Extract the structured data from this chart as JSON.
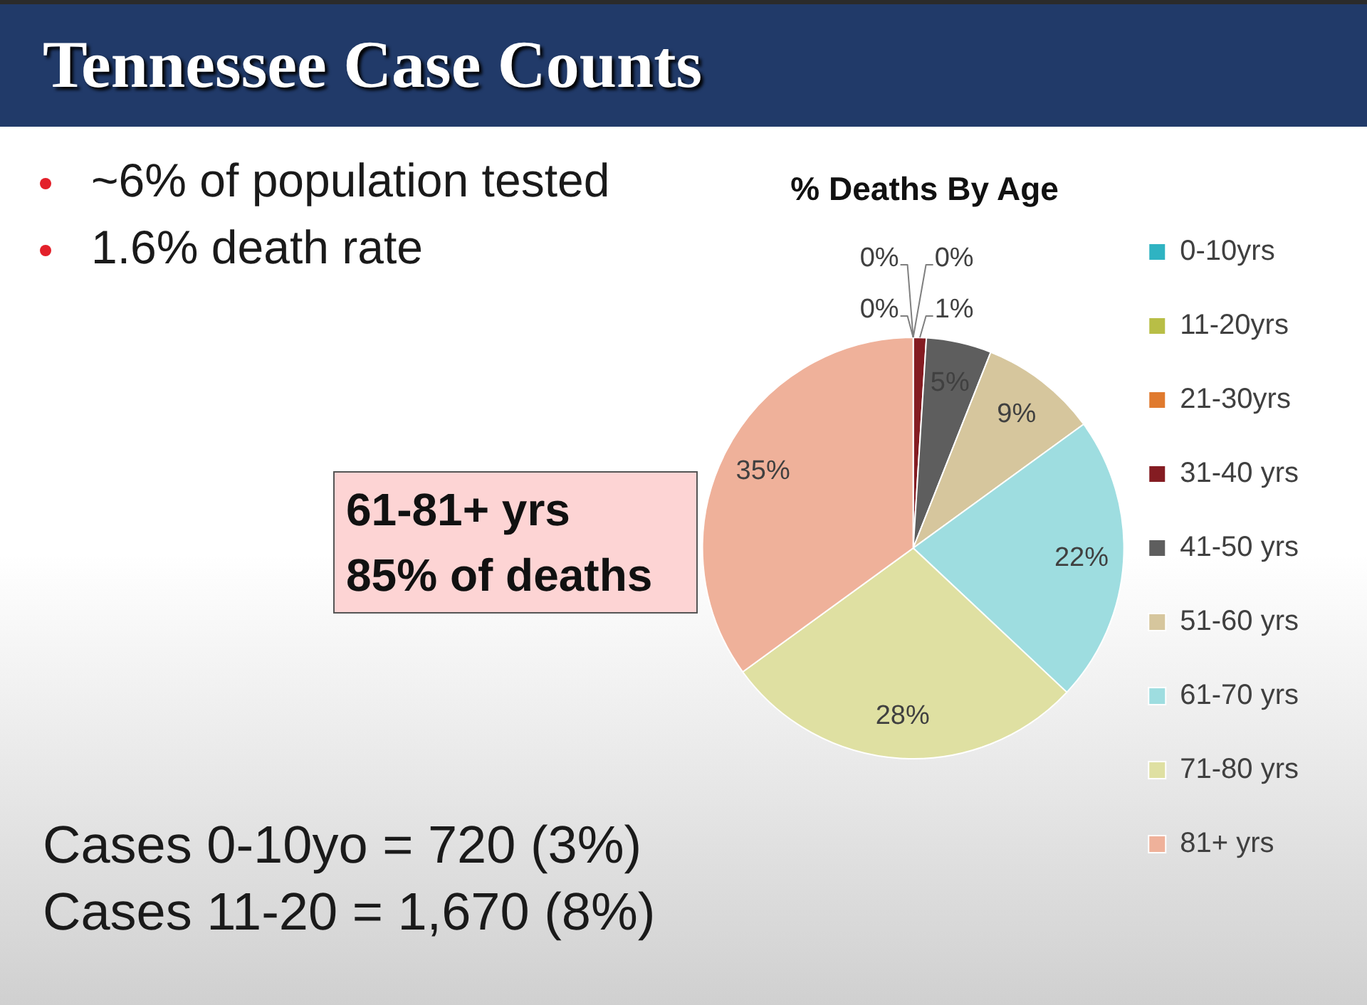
{
  "chart_data": {
    "type": "pie",
    "title": "Tennessee Case Counts",
    "subtitle": "% Deaths By Age",
    "categories": [
      "0-10yrs",
      "11-20yrs",
      "21-30yrs",
      "31-40 yrs",
      "41-50 yrs",
      "51-60 yrs",
      "61-70 yrs",
      "71-80 yrs",
      "81+ yrs"
    ],
    "values": [
      0,
      0,
      0,
      1,
      5,
      9,
      22,
      28,
      35
    ],
    "colors": [
      "#2fb3c2",
      "#b8be46",
      "#e07a2e",
      "#841c22",
      "#5e5e5e",
      "#d6c69d",
      "#9edde0",
      "#dfe0a2",
      "#efb19a"
    ],
    "value_labels": [
      "0%",
      "0%",
      "0%",
      "1%",
      "5%",
      "9%",
      "22%",
      "28%",
      "35%"
    ],
    "legend": "right",
    "annotations": [
      "~6% of population tested",
      "1.6% death rate",
      "61-81+ yrs\n85% of deaths",
      "Cases 0-10yo = 720 (3%)",
      "Cases 11-20 = 1,670 (8%)"
    ]
  }
}
